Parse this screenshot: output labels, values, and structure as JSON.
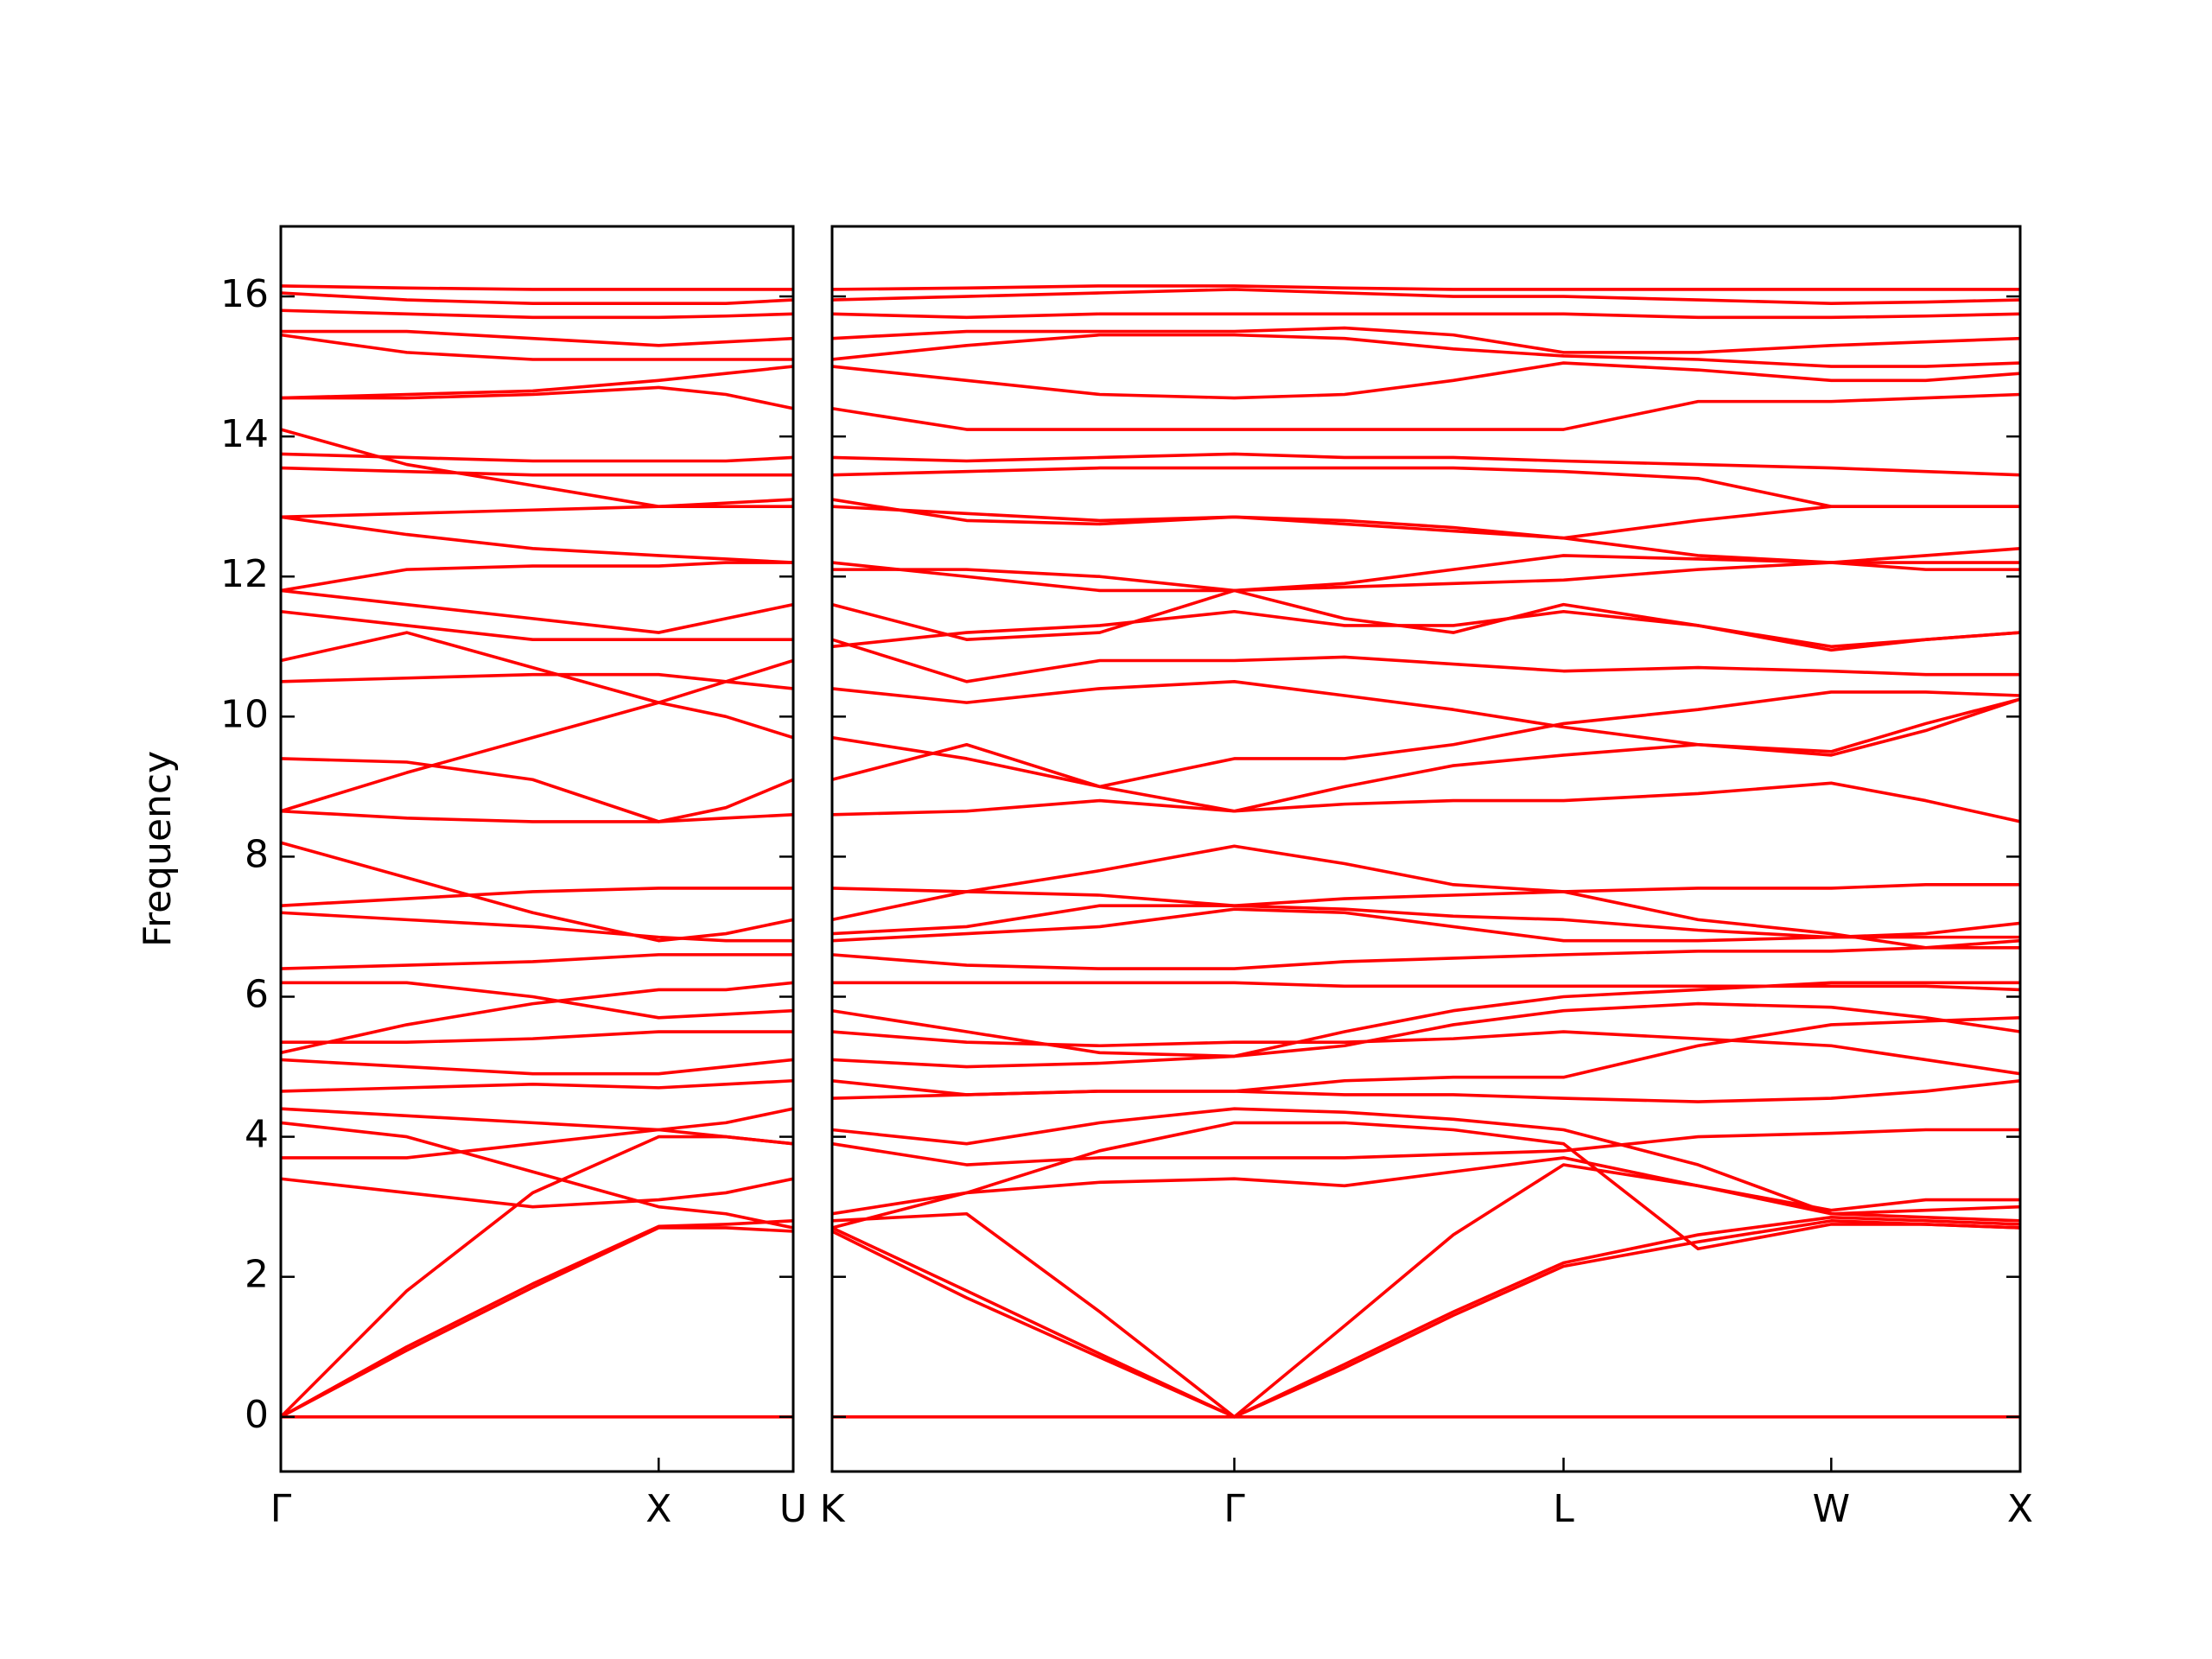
{
  "chart_data": [
    {
      "type": "line",
      "ylabel": "Frequency",
      "color": "#ff0000",
      "grid": false,
      "x": [
        0,
        0.88,
        1.76,
        2.64,
        3.11,
        3.58
      ],
      "xlim": [
        0,
        3.58
      ],
      "xticks": [
        {
          "value": 0,
          "label": "Γ"
        },
        {
          "value": 2.64,
          "label": "X"
        },
        {
          "value": 3.58,
          "label": "U"
        }
      ],
      "ylim": [
        -0.78,
        17.0
      ],
      "yticks": [
        0,
        2,
        4,
        6,
        8,
        10,
        12,
        14,
        16
      ],
      "series": [
        {
          "values": [
            0,
            0,
            0,
            0,
            0,
            0
          ]
        },
        {
          "values": [
            0,
            0.95,
            1.85,
            2.7,
            2.7,
            2.65
          ]
        },
        {
          "values": [
            0,
            1.0,
            1.9,
            2.72,
            2.75,
            2.8
          ]
        },
        {
          "values": [
            0,
            1.8,
            3.2,
            4.0,
            4.0,
            3.9
          ]
        },
        {
          "values": [
            3.4,
            3.2,
            3.0,
            3.1,
            3.2,
            3.4
          ]
        },
        {
          "values": [
            3.7,
            3.7,
            3.9,
            4.1,
            4.2,
            4.4
          ]
        },
        {
          "values": [
            4.2,
            4.0,
            3.5,
            3.0,
            2.9,
            2.7
          ]
        },
        {
          "values": [
            4.4,
            4.3,
            4.2,
            4.1,
            4.0,
            3.9
          ]
        },
        {
          "values": [
            4.65,
            4.7,
            4.75,
            4.7,
            4.75,
            4.8
          ]
        },
        {
          "values": [
            5.1,
            5.0,
            4.9,
            4.9,
            5.0,
            5.1
          ]
        },
        {
          "values": [
            5.2,
            5.6,
            5.9,
            6.1,
            6.1,
            6.2
          ]
        },
        {
          "values": [
            5.35,
            5.35,
            5.4,
            5.5,
            5.5,
            5.5
          ]
        },
        {
          "values": [
            6.2,
            6.2,
            6.0,
            5.7,
            5.75,
            5.8
          ]
        },
        {
          "values": [
            6.4,
            6.45,
            6.5,
            6.6,
            6.6,
            6.6
          ]
        },
        {
          "values": [
            7.2,
            7.1,
            7.0,
            6.85,
            6.8,
            6.8
          ]
        },
        {
          "values": [
            7.3,
            7.4,
            7.5,
            7.55,
            7.55,
            7.55
          ]
        },
        {
          "values": [
            8.2,
            7.7,
            7.2,
            6.8,
            6.9,
            7.1
          ]
        },
        {
          "values": [
            8.65,
            8.55,
            8.5,
            8.5,
            8.55,
            8.6
          ]
        },
        {
          "values": [
            8.65,
            9.2,
            9.7,
            10.2,
            10.5,
            10.8
          ]
        },
        {
          "values": [
            9.4,
            9.35,
            9.1,
            8.5,
            8.7,
            9.1
          ]
        },
        {
          "values": [
            10.5,
            10.55,
            10.6,
            10.6,
            10.5,
            10.4
          ]
        },
        {
          "values": [
            10.8,
            11.2,
            10.7,
            10.2,
            10.0,
            9.7
          ]
        },
        {
          "values": [
            11.5,
            11.3,
            11.1,
            11.1,
            11.1,
            11.1
          ]
        },
        {
          "values": [
            11.8,
            12.1,
            12.15,
            12.15,
            12.2,
            12.2
          ]
        },
        {
          "values": [
            11.8,
            11.6,
            11.4,
            11.2,
            11.4,
            11.6
          ]
        },
        {
          "values": [
            12.85,
            12.6,
            12.4,
            12.3,
            12.25,
            12.2
          ]
        },
        {
          "values": [
            12.85,
            12.9,
            12.95,
            13.0,
            13.05,
            13.1
          ]
        },
        {
          "values": [
            13.55,
            13.5,
            13.45,
            13.45,
            13.45,
            13.45
          ]
        },
        {
          "values": [
            13.75,
            13.7,
            13.65,
            13.65,
            13.65,
            13.7
          ]
        },
        {
          "values": [
            14.1,
            13.6,
            13.3,
            13.0,
            13.0,
            13.0
          ]
        },
        {
          "values": [
            14.55,
            14.55,
            14.6,
            14.7,
            14.6,
            14.4
          ]
        },
        {
          "values": [
            14.55,
            14.6,
            14.65,
            14.8,
            14.9,
            15.0
          ]
        },
        {
          "values": [
            15.45,
            15.2,
            15.1,
            15.1,
            15.1,
            15.1
          ]
        },
        {
          "values": [
            15.5,
            15.5,
            15.4,
            15.3,
            15.35,
            15.4
          ]
        },
        {
          "values": [
            15.8,
            15.75,
            15.7,
            15.7,
            15.72,
            15.75
          ]
        },
        {
          "values": [
            16.05,
            15.95,
            15.9,
            15.9,
            15.9,
            15.95
          ]
        },
        {
          "values": [
            16.15,
            16.12,
            16.1,
            16.1,
            16.1,
            16.1
          ]
        }
      ]
    },
    {
      "type": "line",
      "color": "#ff0000",
      "grid": false,
      "x": [
        0,
        0.94,
        1.87,
        2.81,
        3.58,
        4.34,
        5.11,
        6.05,
        6.98,
        7.64,
        8.3
      ],
      "xlim": [
        0,
        8.3
      ],
      "xticks": [
        {
          "value": 0,
          "label": "K"
        },
        {
          "value": 2.81,
          "label": "Γ"
        },
        {
          "value": 5.11,
          "label": "L"
        },
        {
          "value": 6.98,
          "label": "W"
        },
        {
          "value": 8.3,
          "label": "X"
        }
      ],
      "ylim": [
        -0.78,
        17.0
      ],
      "yticks": [
        0,
        2,
        4,
        6,
        8,
        10,
        12,
        14,
        16
      ],
      "series": [
        {
          "values": [
            0,
            0,
            0,
            0,
            0,
            0,
            0,
            0,
            0,
            0,
            0
          ]
        },
        {
          "values": [
            2.65,
            1.7,
            0.85,
            0,
            0.7,
            1.45,
            2.15,
            2.5,
            2.8,
            2.75,
            2.7
          ]
        },
        {
          "values": [
            2.8,
            2.9,
            1.5,
            0,
            0.75,
            1.5,
            2.2,
            2.6,
            2.85,
            2.8,
            2.75
          ]
        },
        {
          "values": [
            2.7,
            1.8,
            0.9,
            0,
            1.3,
            2.6,
            3.6,
            3.3,
            2.9,
            2.95,
            3.0
          ]
        },
        {
          "values": [
            2.9,
            3.2,
            3.35,
            3.4,
            3.3,
            3.5,
            3.7,
            3.3,
            2.95,
            3.1,
            3.1
          ]
        },
        {
          "values": [
            3.9,
            3.6,
            3.7,
            3.7,
            3.7,
            3.75,
            3.8,
            4.0,
            4.05,
            4.1,
            4.1
          ]
        },
        {
          "values": [
            2.7,
            3.2,
            3.8,
            4.2,
            4.2,
            4.1,
            3.9,
            2.4,
            2.75,
            2.75,
            2.7
          ]
        },
        {
          "values": [
            4.1,
            3.9,
            4.2,
            4.4,
            4.35,
            4.25,
            4.1,
            3.6,
            2.9,
            2.85,
            2.8
          ]
        },
        {
          "values": [
            4.55,
            4.6,
            4.65,
            4.65,
            4.6,
            4.6,
            4.55,
            4.5,
            4.55,
            4.65,
            4.8
          ]
        },
        {
          "values": [
            4.8,
            4.6,
            4.65,
            4.65,
            4.8,
            4.85,
            4.85,
            5.3,
            5.6,
            5.65,
            5.7
          ]
        },
        {
          "values": [
            5.1,
            5.0,
            5.05,
            5.15,
            5.3,
            5.6,
            5.8,
            5.9,
            5.85,
            5.7,
            5.5
          ]
        },
        {
          "values": [
            5.5,
            5.35,
            5.3,
            5.35,
            5.35,
            5.4,
            5.5,
            5.4,
            5.3,
            5.1,
            4.9
          ]
        },
        {
          "values": [
            5.8,
            5.5,
            5.2,
            5.15,
            5.5,
            5.8,
            6.0,
            6.1,
            6.2,
            6.2,
            6.2
          ]
        },
        {
          "values": [
            6.2,
            6.2,
            6.2,
            6.2,
            6.15,
            6.15,
            6.15,
            6.15,
            6.15,
            6.15,
            6.1
          ]
        },
        {
          "values": [
            6.6,
            6.45,
            6.4,
            6.4,
            6.5,
            6.55,
            6.6,
            6.65,
            6.65,
            6.7,
            6.8
          ]
        },
        {
          "values": [
            6.8,
            6.9,
            7.0,
            7.25,
            7.2,
            7.0,
            6.8,
            6.8,
            6.85,
            6.85,
            6.85
          ]
        },
        {
          "values": [
            6.9,
            7.0,
            7.3,
            7.3,
            7.25,
            7.15,
            7.1,
            6.95,
            6.85,
            6.9,
            7.05
          ]
        },
        {
          "values": [
            7.1,
            7.5,
            7.8,
            8.15,
            7.9,
            7.6,
            7.5,
            7.1,
            6.9,
            6.7,
            6.7
          ]
        },
        {
          "values": [
            7.55,
            7.5,
            7.45,
            7.3,
            7.4,
            7.45,
            7.5,
            7.55,
            7.55,
            7.6,
            7.6
          ]
        },
        {
          "values": [
            8.6,
            8.65,
            8.8,
            8.65,
            8.75,
            8.8,
            8.8,
            8.9,
            9.05,
            8.8,
            8.5
          ]
        },
        {
          "values": [
            9.1,
            9.6,
            9.0,
            8.65,
            9.0,
            9.3,
            9.45,
            9.6,
            9.5,
            9.9,
            10.25
          ]
        },
        {
          "values": [
            9.7,
            9.4,
            9.0,
            9.4,
            9.4,
            9.6,
            9.9,
            10.1,
            10.35,
            10.35,
            10.3
          ]
        },
        {
          "values": [
            10.4,
            10.2,
            10.4,
            10.5,
            10.3,
            10.1,
            9.85,
            9.6,
            9.45,
            9.8,
            10.25
          ]
        },
        {
          "values": [
            11.1,
            10.5,
            10.8,
            10.8,
            10.85,
            10.75,
            10.65,
            10.7,
            10.65,
            10.6,
            10.6
          ]
        },
        {
          "values": [
            11.0,
            11.2,
            11.3,
            11.5,
            11.3,
            11.3,
            11.5,
            11.3,
            11.0,
            11.1,
            11.2
          ]
        },
        {
          "values": [
            11.6,
            11.1,
            11.2,
            11.8,
            11.4,
            11.2,
            11.6,
            11.3,
            10.95,
            11.1,
            11.2
          ]
        },
        {
          "values": [
            12.2,
            12.0,
            11.8,
            11.8,
            11.85,
            11.9,
            11.95,
            12.1,
            12.2,
            12.1,
            12.1
          ]
        },
        {
          "values": [
            12.1,
            12.1,
            12.0,
            11.8,
            11.9,
            12.1,
            12.3,
            12.25,
            12.2,
            12.3,
            12.4
          ]
        },
        {
          "values": [
            13.1,
            12.8,
            12.75,
            12.85,
            12.75,
            12.65,
            12.55,
            12.8,
            13.0,
            13.0,
            13.0
          ]
        },
        {
          "values": [
            13.0,
            12.9,
            12.8,
            12.85,
            12.8,
            12.7,
            12.55,
            12.3,
            12.2,
            12.2,
            12.2
          ]
        },
        {
          "values": [
            13.45,
            13.5,
            13.55,
            13.55,
            13.55,
            13.55,
            13.5,
            13.4,
            13.0,
            13.0,
            13.0
          ]
        },
        {
          "values": [
            13.7,
            13.65,
            13.7,
            13.75,
            13.7,
            13.7,
            13.65,
            13.6,
            13.55,
            13.5,
            13.45
          ]
        },
        {
          "values": [
            14.4,
            14.1,
            14.1,
            14.1,
            14.1,
            14.1,
            14.1,
            14.5,
            14.5,
            14.55,
            14.6
          ]
        },
        {
          "values": [
            15.0,
            14.8,
            14.6,
            14.55,
            14.6,
            14.8,
            15.05,
            14.95,
            14.8,
            14.8,
            14.9
          ]
        },
        {
          "values": [
            15.1,
            15.3,
            15.45,
            15.45,
            15.4,
            15.25,
            15.15,
            15.1,
            15.0,
            15.0,
            15.05
          ]
        },
        {
          "values": [
            15.4,
            15.5,
            15.5,
            15.5,
            15.55,
            15.45,
            15.2,
            15.2,
            15.3,
            15.35,
            15.4
          ]
        },
        {
          "values": [
            15.75,
            15.7,
            15.75,
            15.75,
            15.75,
            15.75,
            15.75,
            15.7,
            15.7,
            15.72,
            15.75
          ]
        },
        {
          "values": [
            15.95,
            16.0,
            16.05,
            16.1,
            16.05,
            16.0,
            16.0,
            15.95,
            15.9,
            15.92,
            15.95
          ]
        },
        {
          "values": [
            16.1,
            16.12,
            16.15,
            16.15,
            16.12,
            16.1,
            16.1,
            16.1,
            16.1,
            16.1,
            16.1
          ]
        }
      ]
    }
  ]
}
